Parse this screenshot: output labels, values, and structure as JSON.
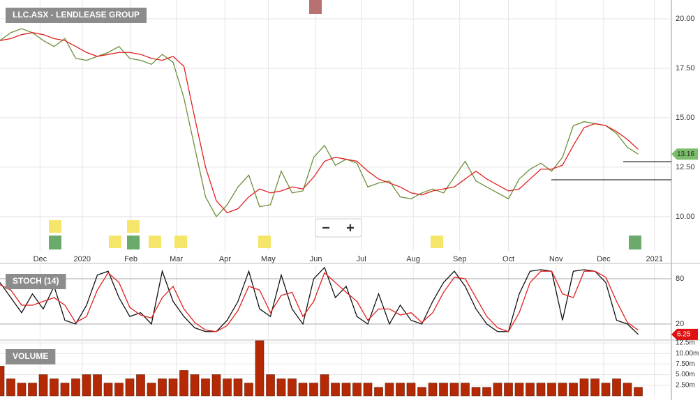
{
  "chart_data": [
    {
      "type": "line",
      "title": "LLC.ASX - LENDLEASE GROUP",
      "x": [
        0,
        1,
        2,
        3,
        4,
        5,
        6,
        7,
        8,
        9,
        10,
        11,
        12,
        13,
        14,
        15,
        16,
        17,
        18,
        19,
        20,
        21,
        22,
        23,
        24,
        25,
        26,
        27,
        28,
        29,
        30,
        31,
        32,
        33,
        34,
        35,
        36,
        37,
        38,
        39,
        40,
        41,
        42,
        43,
        44,
        45,
        46,
        47,
        48,
        49,
        50,
        51,
        52,
        53,
        54,
        55,
        56,
        57,
        58,
        59
      ],
      "series": [
        {
          "color": "#6a8f3a",
          "values": [
            18.9,
            19.3,
            19.5,
            19.3,
            18.9,
            18.6,
            19.0,
            18.0,
            17.9,
            18.1,
            18.3,
            18.6,
            18.0,
            17.9,
            17.7,
            18.2,
            17.8,
            16.0,
            13.5,
            11.0,
            10.0,
            10.6,
            11.5,
            12.1,
            10.5,
            10.6,
            12.3,
            11.2,
            11.3,
            13.0,
            13.6,
            12.6,
            12.9,
            12.7,
            11.5,
            11.7,
            11.8,
            11.0,
            10.9,
            11.2,
            11.4,
            11.2,
            12.0,
            12.8,
            11.8,
            11.5,
            11.2,
            10.9,
            11.9,
            12.4,
            12.7,
            12.3,
            13.0,
            14.6,
            14.8,
            14.7,
            14.6,
            14.2,
            13.5,
            13.16
          ]
        },
        {
          "color": "#e02020",
          "values": [
            18.9,
            19.0,
            19.2,
            19.3,
            19.2,
            19.0,
            18.9,
            18.6,
            18.3,
            18.1,
            18.2,
            18.3,
            18.3,
            18.2,
            18.0,
            17.9,
            18.1,
            17.6,
            15.0,
            12.5,
            10.8,
            10.2,
            10.4,
            11.0,
            11.4,
            11.2,
            11.3,
            11.5,
            11.4,
            12.0,
            12.8,
            13.0,
            12.9,
            12.8,
            12.3,
            11.9,
            11.7,
            11.5,
            11.2,
            11.1,
            11.3,
            11.4,
            11.5,
            11.9,
            12.3,
            11.9,
            11.6,
            11.3,
            11.4,
            11.9,
            12.4,
            12.4,
            12.6,
            13.6,
            14.5,
            14.7,
            14.6,
            14.3,
            13.9,
            13.4
          ]
        }
      ],
      "xlim": [
        0,
        62
      ],
      "xticks": [
        {
          "value": 3.7,
          "label": "Dec"
        },
        {
          "value": 7.6,
          "label": "2020"
        },
        {
          "value": 12.1,
          "label": "Feb"
        },
        {
          "value": 16.3,
          "label": "Mar"
        },
        {
          "value": 20.8,
          "label": "Apr"
        },
        {
          "value": 24.8,
          "label": "May"
        },
        {
          "value": 29.2,
          "label": "Jun"
        },
        {
          "value": 33.4,
          "label": "Jul"
        },
        {
          "value": 38.2,
          "label": "Aug"
        },
        {
          "value": 42.5,
          "label": "Sep"
        },
        {
          "value": 47.0,
          "label": "Oct"
        },
        {
          "value": 51.4,
          "label": "Nov"
        },
        {
          "value": 55.8,
          "label": "Dec"
        },
        {
          "value": 60.5,
          "label": "2021"
        }
      ],
      "ylim": [
        8.27,
        20.95
      ],
      "yticks": [
        {
          "value": 10,
          "label": "10.00"
        },
        {
          "value": 12.5,
          "label": "12.50"
        },
        {
          "value": 15,
          "label": "15.00"
        },
        {
          "value": 17.5,
          "label": "17.50"
        },
        {
          "value": 20,
          "label": "20.00"
        }
      ],
      "grid": true
    },
    {
      "type": "line",
      "title": "STOCH (14)",
      "x": [
        0,
        1,
        2,
        3,
        4,
        5,
        6,
        7,
        8,
        9,
        10,
        11,
        12,
        13,
        14,
        15,
        16,
        17,
        18,
        19,
        20,
        21,
        22,
        23,
        24,
        25,
        26,
        27,
        28,
        29,
        30,
        31,
        32,
        33,
        34,
        35,
        36,
        37,
        38,
        39,
        40,
        41,
        42,
        43,
        44,
        45,
        46,
        47,
        48,
        49,
        50,
        51,
        52,
        53,
        54,
        55,
        56,
        57,
        58,
        59
      ],
      "series": [
        {
          "color": "#111111",
          "values": [
            75,
            55,
            35,
            60,
            40,
            70,
            25,
            20,
            45,
            85,
            90,
            55,
            30,
            35,
            20,
            90,
            50,
            30,
            15,
            10,
            10,
            25,
            50,
            90,
            40,
            30,
            85,
            40,
            20,
            80,
            95,
            55,
            70,
            30,
            20,
            60,
            20,
            45,
            25,
            20,
            50,
            75,
            90,
            70,
            40,
            20,
            10,
            10,
            60,
            90,
            92,
            90,
            25,
            90,
            92,
            90,
            75,
            25,
            20,
            6.25
          ]
        },
        {
          "color": "#e02020",
          "values": [
            72,
            65,
            45,
            45,
            50,
            55,
            45,
            22,
            30,
            65,
            88,
            75,
            42,
            32,
            28,
            55,
            70,
            40,
            22,
            12,
            10,
            18,
            38,
            70,
            65,
            35,
            58,
            62,
            30,
            50,
            88,
            75,
            62,
            50,
            25,
            40,
            40,
            32,
            35,
            22,
            35,
            62,
            82,
            80,
            55,
            30,
            15,
            10,
            35,
            75,
            90,
            90,
            60,
            55,
            90,
            90,
            82,
            50,
            22,
            12
          ]
        }
      ],
      "xlim": [
        0,
        62
      ],
      "ylim": [
        0.6,
        98.5
      ],
      "yticks": [
        20,
        80
      ],
      "grid": true
    },
    {
      "type": "bar",
      "title": "VOLUME",
      "x": [
        0,
        1,
        2,
        3,
        4,
        5,
        6,
        7,
        8,
        9,
        10,
        11,
        12,
        13,
        14,
        15,
        16,
        17,
        18,
        19,
        20,
        21,
        22,
        23,
        24,
        25,
        26,
        27,
        28,
        29,
        30,
        31,
        32,
        33,
        34,
        35,
        36,
        37,
        38,
        39,
        40,
        41,
        42,
        43,
        44,
        45,
        46,
        47,
        48,
        49,
        50,
        51,
        52,
        53,
        54,
        55,
        56,
        57,
        58,
        59
      ],
      "values": [
        7,
        4,
        3,
        3,
        5,
        4,
        3,
        4,
        5,
        5,
        3,
        3,
        4,
        5,
        3,
        4,
        4,
        6,
        5,
        4,
        5,
        4,
        4,
        3,
        13,
        5,
        4,
        4,
        3,
        3,
        5,
        3,
        3,
        3,
        3,
        2,
        3,
        3,
        3,
        2,
        3,
        3,
        3,
        3,
        2,
        2,
        3,
        3,
        3,
        3,
        3,
        3,
        3,
        3,
        4,
        4,
        3,
        4,
        3,
        2
      ],
      "color": "#b52a05",
      "xlim": [
        0,
        62
      ],
      "ylim": [
        -0.33,
        12.83
      ],
      "yticks": [
        {
          "value": 2.5,
          "label": "2.50m"
        },
        {
          "value": 5,
          "label": "5.00m"
        },
        {
          "value": 7.5,
          "label": "7.50m"
        },
        {
          "value": 10,
          "label": "10.00m"
        },
        {
          "value": 12.5,
          "label": "12.5m"
        }
      ],
      "grid": true
    }
  ]
}
